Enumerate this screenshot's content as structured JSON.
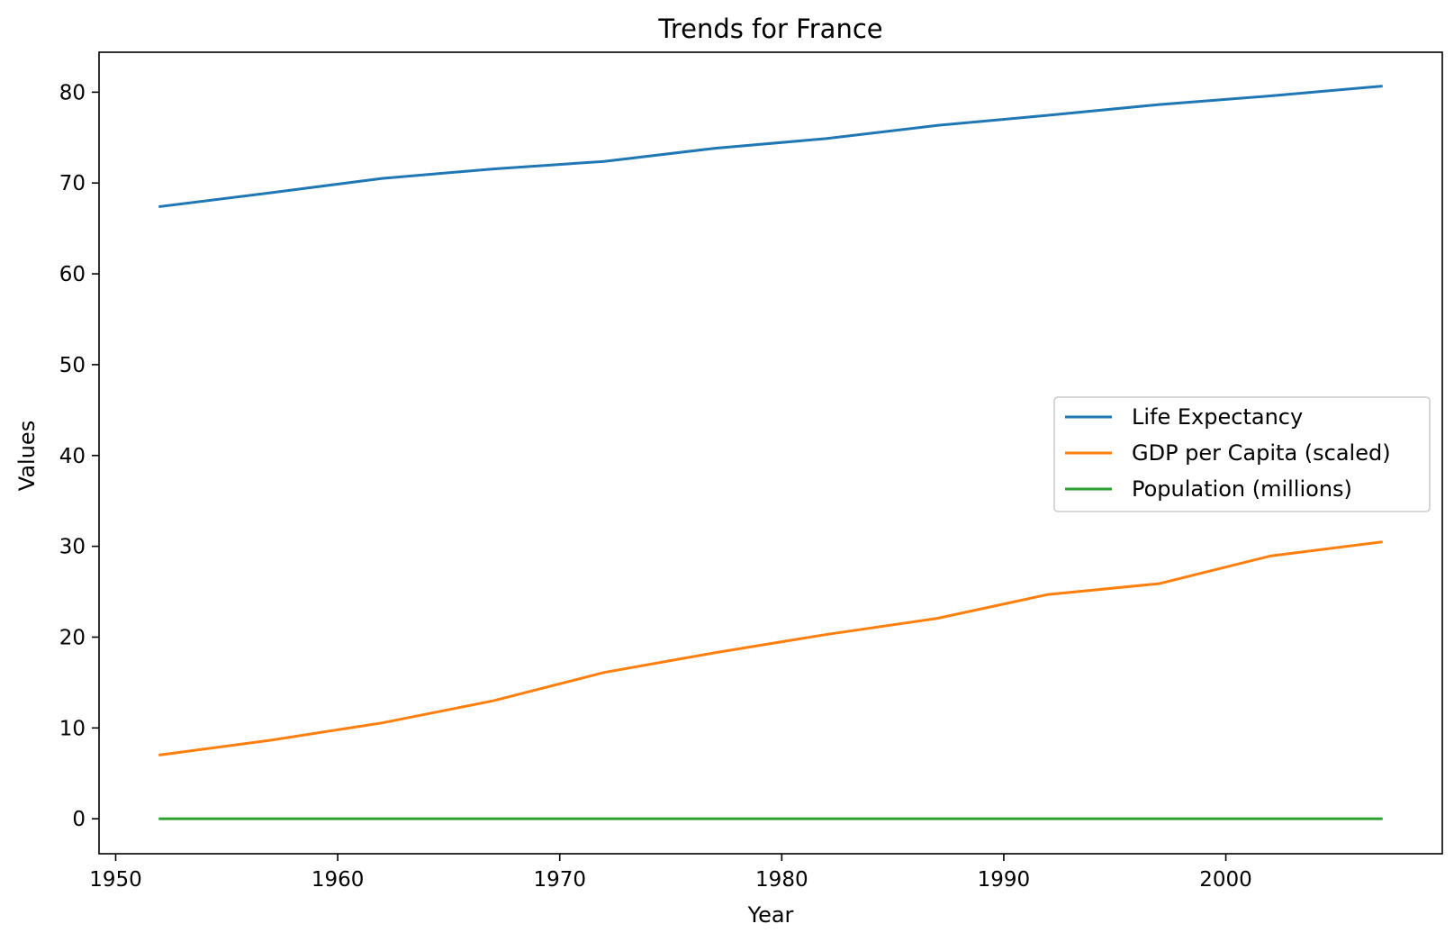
{
  "chart_data": {
    "type": "line",
    "title": "Trends for France",
    "xlabel": "Year",
    "ylabel": "Values",
    "x": [
      1952,
      1957,
      1962,
      1967,
      1972,
      1977,
      1982,
      1987,
      1992,
      1997,
      2002,
      2007
    ],
    "xlim": [
      1949.25,
      2009.75
    ],
    "ylim": [
      -3.85,
      84.4
    ],
    "xticks": [
      1950,
      1960,
      1970,
      1980,
      1990,
      2000
    ],
    "yticks": [
      0,
      10,
      20,
      30,
      40,
      50,
      60,
      70,
      80
    ],
    "grid": false,
    "legend_position": "center-right",
    "series": [
      {
        "name": "Life Expectancy",
        "color": "#1f77b4",
        "values": [
          67.41,
          68.93,
          70.51,
          71.55,
          72.38,
          73.83,
          74.89,
          76.34,
          77.46,
          78.64,
          79.59,
          80.66
        ]
      },
      {
        "name": "GDP per Capita (scaled)",
        "color": "#ff7f0e",
        "values": [
          7.03,
          8.66,
          10.56,
          12.99,
          16.11,
          18.29,
          20.29,
          22.07,
          24.7,
          25.89,
          28.93,
          30.47
        ]
      },
      {
        "name": "Population (millions)",
        "color": "#2ca02c",
        "values": [
          0.0,
          0.0,
          0.0,
          0.0,
          0.0,
          0.0,
          0.0,
          0.0,
          0.0,
          0.0,
          0.0,
          0.0
        ]
      }
    ]
  }
}
